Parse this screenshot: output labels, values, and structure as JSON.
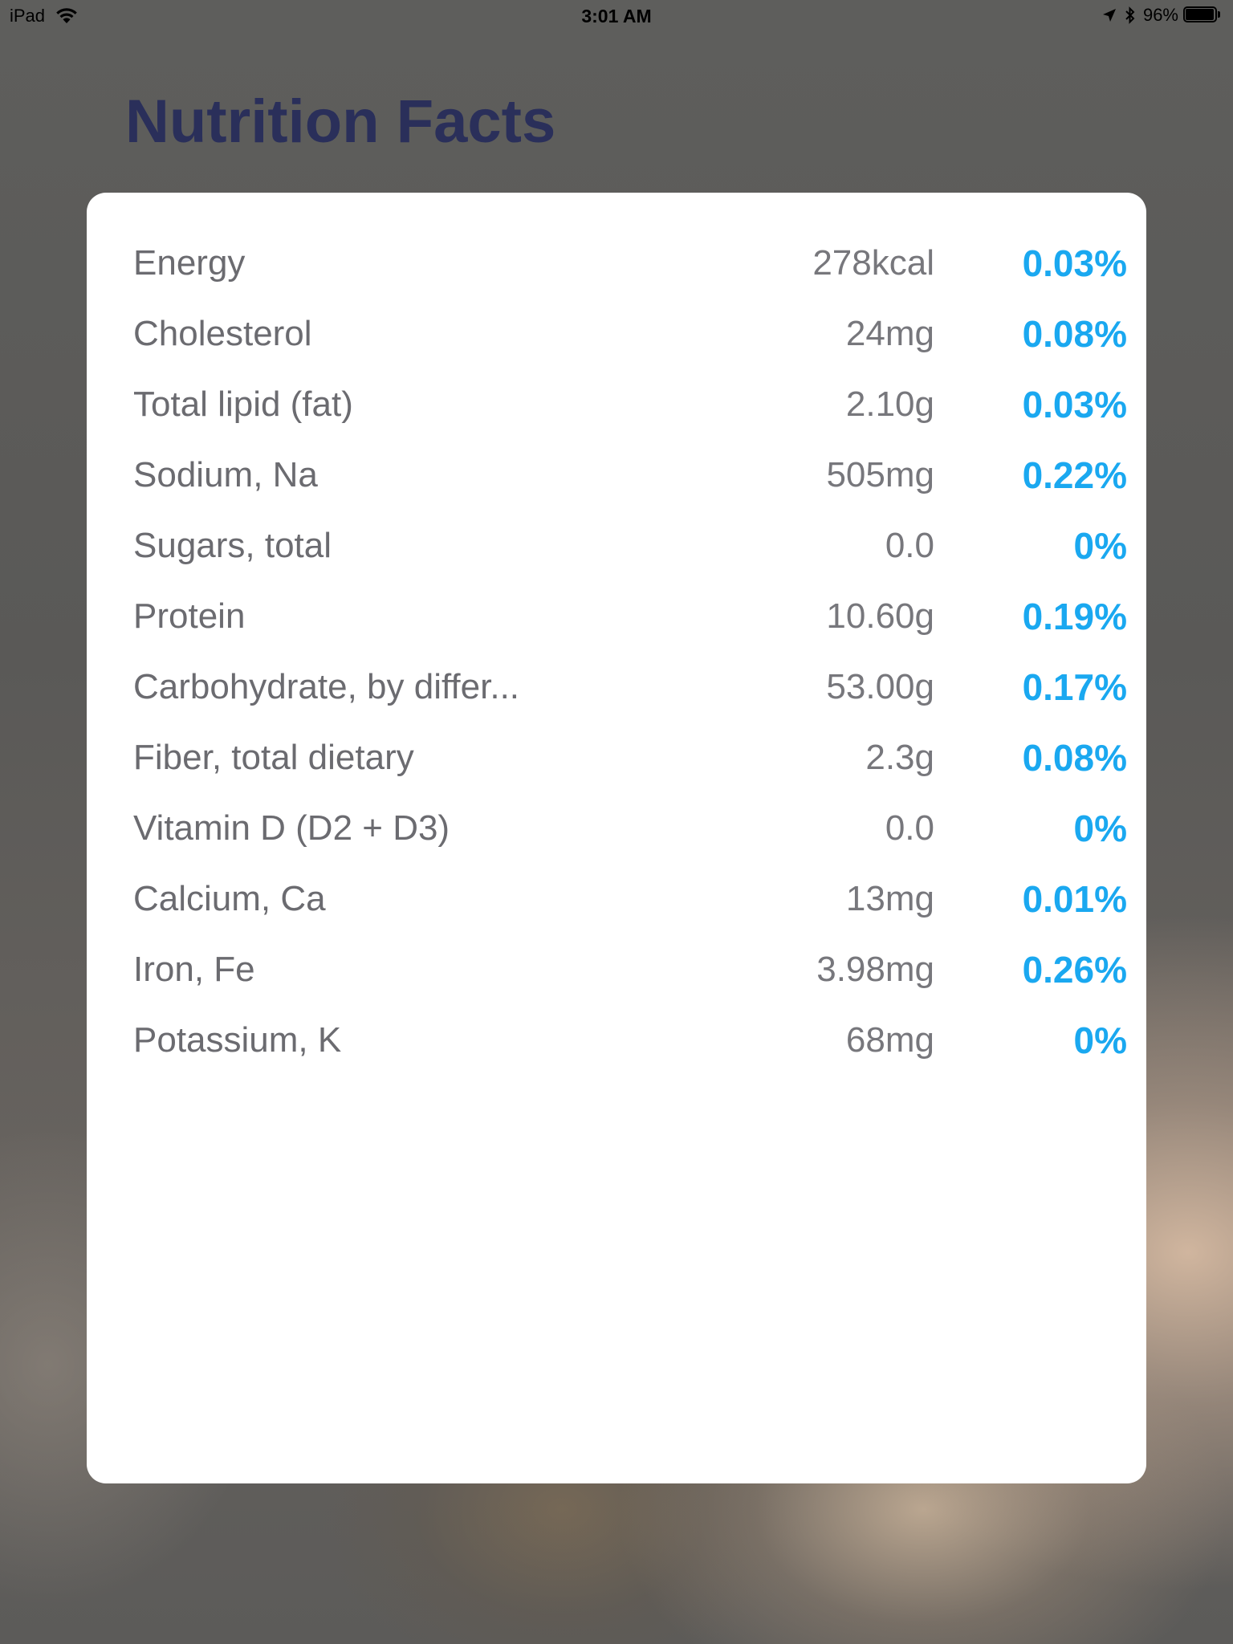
{
  "status_bar": {
    "device": "iPad",
    "time": "3:01 AM",
    "battery_percent": "96%",
    "battery_level": 0.96,
    "icons": [
      "wifi-icon",
      "location-arrow-icon",
      "bluetooth-icon",
      "battery-icon"
    ]
  },
  "page": {
    "title": "Nutrition Facts"
  },
  "nutrients": [
    {
      "name": "Energy",
      "amount": "278kcal",
      "percent": "0.03%"
    },
    {
      "name": "Cholesterol",
      "amount": "24mg",
      "percent": "0.08%"
    },
    {
      "name": "Total lipid (fat)",
      "amount": "2.10g",
      "percent": "0.03%"
    },
    {
      "name": "Sodium, Na",
      "amount": "505mg",
      "percent": "0.22%"
    },
    {
      "name": "Sugars, total",
      "amount": "0.0",
      "percent": "0%"
    },
    {
      "name": "Protein",
      "amount": "10.60g",
      "percent": "0.19%"
    },
    {
      "name": "Carbohydrate, by differ...",
      "amount": "53.00g",
      "percent": "0.17%"
    },
    {
      "name": "Fiber, total dietary",
      "amount": "2.3g",
      "percent": "0.08%"
    },
    {
      "name": "Vitamin D (D2 + D3)",
      "amount": "0.0",
      "percent": "0%"
    },
    {
      "name": "Calcium, Ca",
      "amount": "13mg",
      "percent": "0.01%"
    },
    {
      "name": "Iron, Fe",
      "amount": "3.98mg",
      "percent": "0.26%"
    },
    {
      "name": "Potassium, K",
      "amount": "68mg",
      "percent": "0%"
    }
  ],
  "colors": {
    "title": "#2a2f5a",
    "percent_accent": "#1aa8f0",
    "card": "#ffffff"
  }
}
